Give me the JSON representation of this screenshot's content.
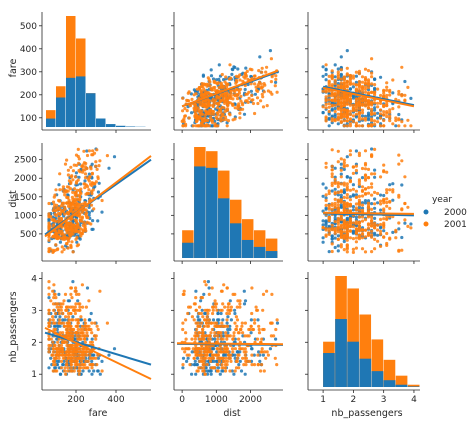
{
  "chart_data": {
    "type": "scatter",
    "kind": "pairplot",
    "variables": [
      "fare",
      "dist",
      "nb_passengers"
    ],
    "hue": "year",
    "legend": {
      "title": "year",
      "placement": "right-center",
      "entries": [
        "2000",
        "2001"
      ]
    },
    "colors": {
      "2000": "#1f77b4",
      "2001": "#ff7f0e"
    },
    "grid": false,
    "axes": {
      "fare": {
        "lim": [
          45,
          575
        ],
        "ylim": [
          60,
          560
        ],
        "xticks": [
          200,
          400
        ],
        "yticks": [
          100,
          200,
          300,
          400,
          500
        ]
      },
      "dist": {
        "lim": [
          -150,
          2950
        ],
        "xticks": [
          0,
          1000,
          2000
        ],
        "yticks": [
          500,
          1000,
          1500,
          2000,
          2500
        ]
      },
      "nb_passengers": {
        "lim": [
          0.6,
          4.2
        ],
        "xticks": [
          1,
          2,
          3,
          4
        ],
        "yticks": [
          1,
          2,
          3,
          4
        ]
      }
    },
    "histograms": {
      "fare": {
        "bins": [
          50,
          100,
          150,
          200,
          250,
          300,
          350,
          400,
          450,
          500,
          550
        ],
        "series": [
          {
            "name": "2000",
            "counts": [
              60,
              210,
              350,
              360,
              240,
              60,
              20,
              8,
              3,
              1
            ]
          },
          {
            "name": "2001",
            "counts": [
              120,
              290,
              790,
              630,
              240,
              30,
              4,
              1,
              0,
              0
            ]
          }
        ]
      },
      "dist": {
        "bins": [
          0,
          350,
          700,
          1050,
          1400,
          1750,
          2100,
          2450,
          2800
        ],
        "series": [
          {
            "name": "2000",
            "counts": [
              110,
              660,
              650,
              430,
              250,
              130,
              80,
              50
            ]
          },
          {
            "name": "2001",
            "counts": [
              200,
              800,
              770,
              630,
              420,
              280,
              200,
              140
            ]
          }
        ]
      },
      "nb_passengers": {
        "bins": [
          1.0,
          1.4,
          1.8,
          2.2,
          2.6,
          3.0,
          3.4,
          3.8,
          4.2
        ],
        "series": [
          {
            "name": "2000",
            "counts": [
              300,
              600,
              400,
              250,
              140,
              60,
              20,
              5
            ]
          },
          {
            "name": "2001",
            "counts": [
              400,
              980,
              870,
              640,
              420,
              240,
              100,
              20
            ]
          }
        ]
      }
    },
    "regressions": {
      "2000": [
        {
          "x": "dist",
          "y": "fare",
          "points": [
            [
              0,
              150
            ],
            [
              2800,
              300
            ]
          ]
        },
        {
          "x": "nb_passengers",
          "y": "fare",
          "points": [
            [
              1,
              235
            ],
            [
              4,
              155
            ]
          ]
        },
        {
          "x": "fare",
          "y": "dist",
          "points": [
            [
              45,
              480
            ],
            [
              575,
              2500
            ]
          ]
        },
        {
          "x": "nb_passengers",
          "y": "dist",
          "points": [
            [
              1,
              1050
            ],
            [
              4,
              1000
            ]
          ]
        },
        {
          "x": "fare",
          "y": "nb_passengers",
          "points": [
            [
              45,
              2.3
            ],
            [
              575,
              1.3
            ]
          ]
        },
        {
          "x": "dist",
          "y": "nb_passengers",
          "points": [
            [
              -150,
              1.95
            ],
            [
              2950,
              1.92
            ]
          ]
        }
      ],
      "2001": [
        {
          "x": "dist",
          "y": "fare",
          "points": [
            [
              0,
              150
            ],
            [
              2800,
              305
            ]
          ]
        },
        {
          "x": "nb_passengers",
          "y": "fare",
          "points": [
            [
              1,
              230
            ],
            [
              4,
              150
            ]
          ]
        },
        {
          "x": "fare",
          "y": "dist",
          "points": [
            [
              45,
              430
            ],
            [
              575,
              2600
            ]
          ]
        },
        {
          "x": "nb_passengers",
          "y": "dist",
          "points": [
            [
              1,
              1070
            ],
            [
              4,
              1040
            ]
          ]
        },
        {
          "x": "fare",
          "y": "nb_passengers",
          "points": [
            [
              45,
              2.45
            ],
            [
              575,
              0.85
            ]
          ]
        },
        {
          "x": "dist",
          "y": "nb_passengers",
          "points": [
            [
              -150,
              1.97
            ],
            [
              2950,
              1.94
            ]
          ]
        }
      ]
    }
  }
}
